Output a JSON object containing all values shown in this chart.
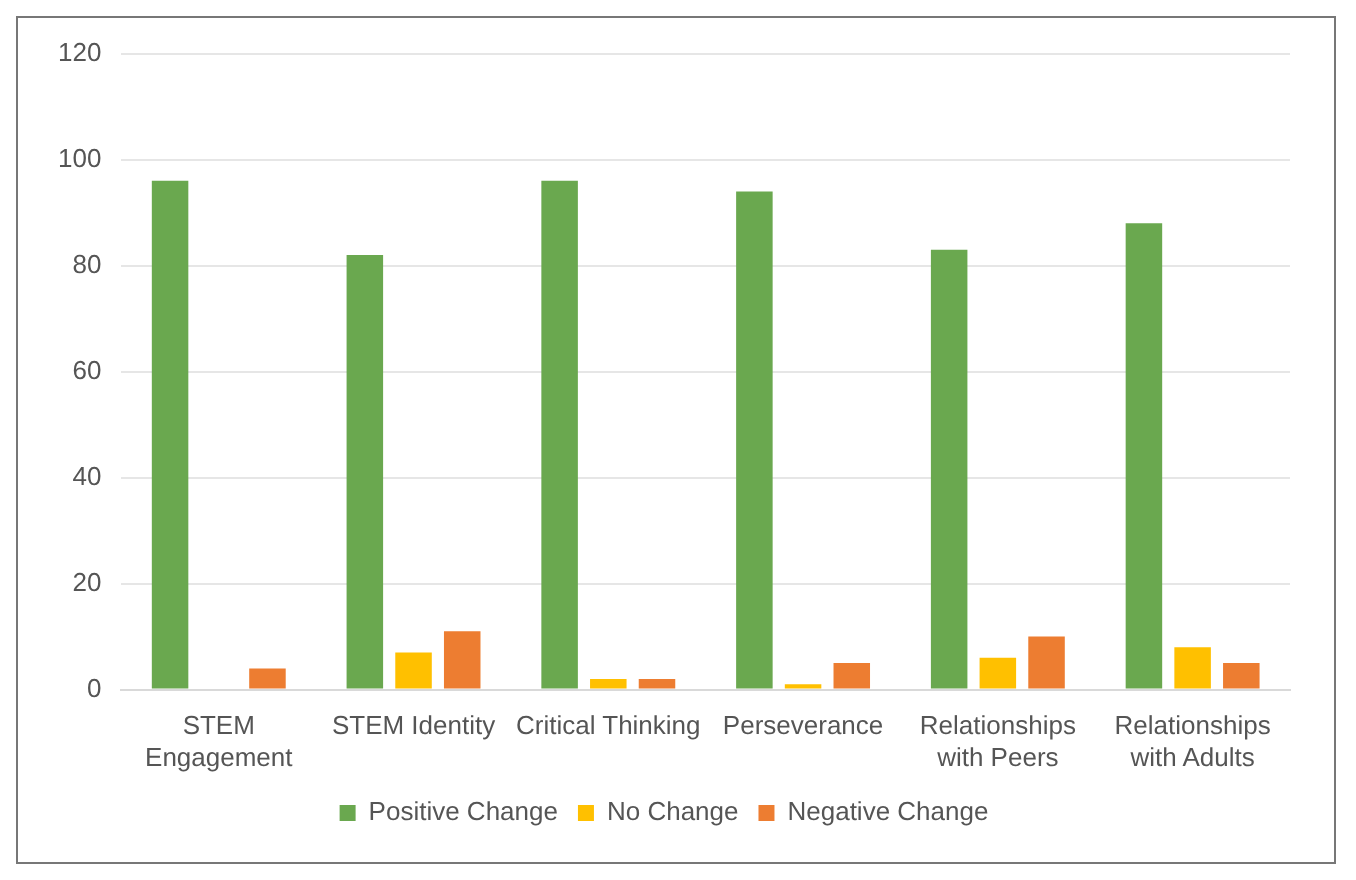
{
  "chart_data": {
    "type": "bar",
    "categories": [
      [
        "STEM",
        "Engagement"
      ],
      "STEM Identity",
      "Critical Thinking",
      "Perseverance",
      [
        "Relationships",
        "with Peers"
      ],
      [
        "Relationships",
        "with Adults"
      ]
    ],
    "series": [
      {
        "name": "Positive Change",
        "color": "#6aa84f",
        "values": [
          96,
          82,
          96,
          94,
          83,
          88
        ]
      },
      {
        "name": "No Change",
        "color": "#ffc000",
        "values": [
          0,
          7,
          2,
          1,
          6,
          8
        ]
      },
      {
        "name": "Negative Change",
        "color": "#ed7d31",
        "values": [
          4,
          11,
          2,
          5,
          10,
          5
        ]
      }
    ],
    "ylim": [
      0,
      120
    ],
    "yticks": [
      0,
      20,
      40,
      60,
      80,
      100,
      120
    ],
    "grid": "y",
    "legend": "bottom"
  }
}
